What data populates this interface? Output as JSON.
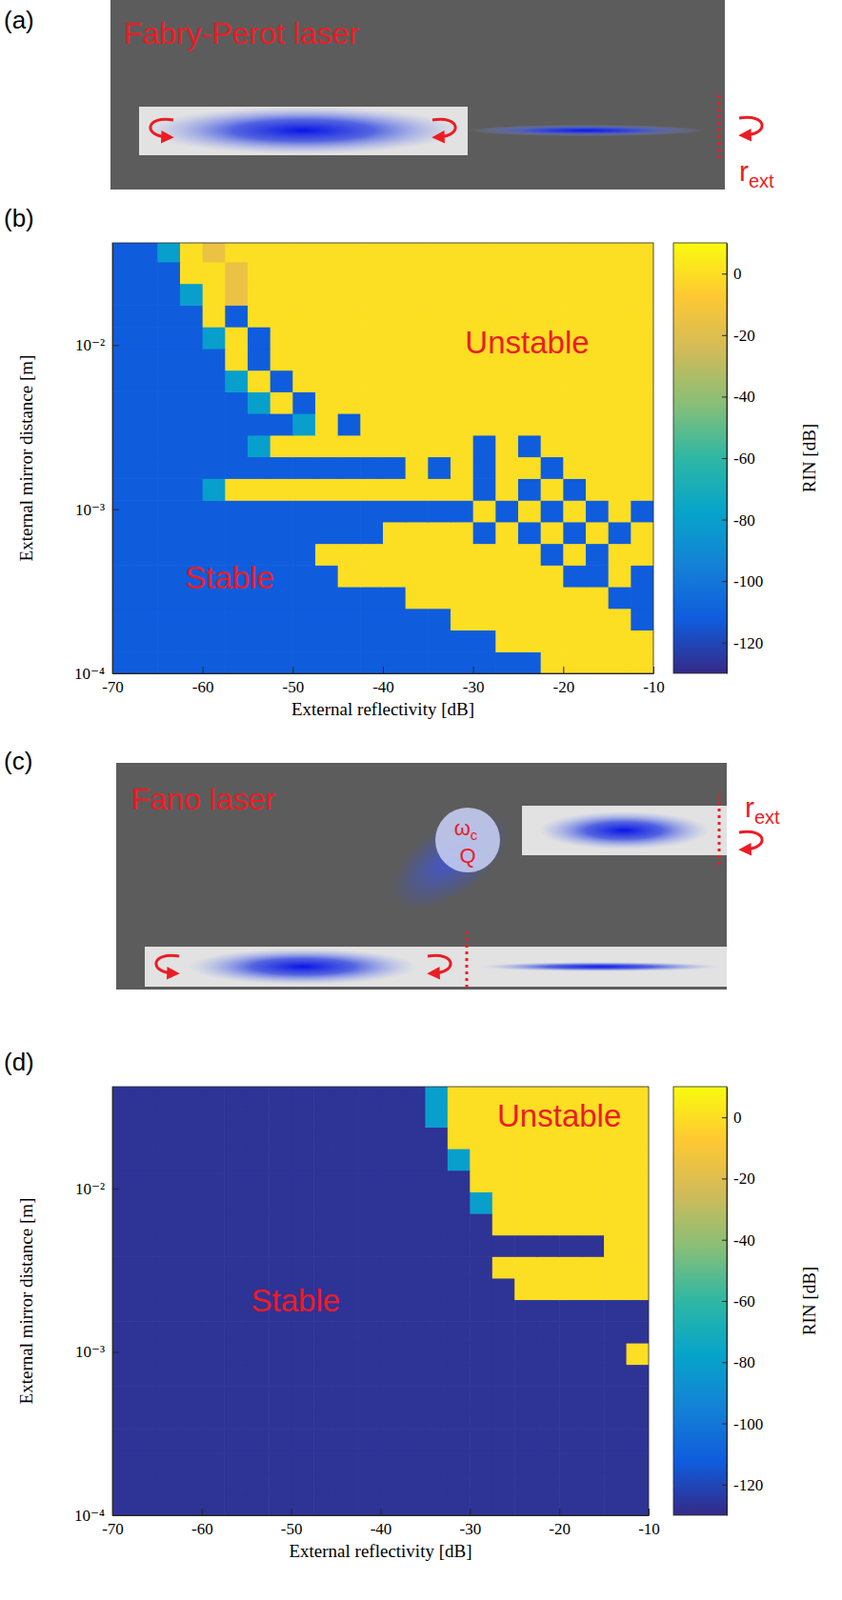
{
  "diagrams": [
    {
      "panel": "(a)",
      "title": "Fabry-Perot laser",
      "mirror_label": "r",
      "mirror_label_subscript": "ext"
    },
    {
      "panel": "(c)",
      "title": "Fano laser",
      "mirror_label": "r",
      "mirror_label_subscript": "ext",
      "cavity_frequency": "ω",
      "cavity_frequency_subscript": "c",
      "cavity_q": "Q"
    }
  ],
  "chart_data": [
    {
      "type": "heatmap",
      "panel": "(b)",
      "x_label": "External reflectivity [dB]",
      "y_label": "External mirror distance [m]",
      "log": "y",
      "xlim": [
        -70,
        -10
      ],
      "ylim": [
        0.0001,
        0.042
      ],
      "xticks": [
        -70,
        -60,
        -50,
        -40,
        -30,
        -20,
        -10
      ],
      "yticks": [
        {
          "value": 0.0001,
          "label": "10⁻⁴"
        },
        {
          "value": 0.001,
          "label": "10⁻³"
        },
        {
          "value": 0.01,
          "label": "10⁻²"
        }
      ],
      "x": [
        -68.75,
        -66.25,
        -63.75,
        -61.25,
        -58.75,
        -56.25,
        -53.75,
        -51.25,
        -48.75,
        -46.25,
        -43.75,
        -41.25,
        -38.75,
        -36.25,
        -33.75,
        -31.25,
        -28.75,
        -26.25,
        -23.75,
        -21.25,
        -18.75,
        -16.25,
        -13.75,
        -11.25
      ],
      "y": [
        0.000116,
        0.000158,
        0.000214,
        0.00029,
        0.000393,
        0.000532,
        0.000721,
        0.000977,
        0.00132,
        0.0018,
        0.00243,
        0.0033,
        0.00447,
        0.00605,
        0.0082,
        0.0111,
        0.0151,
        0.0204,
        0.0277,
        0.0375
      ],
      "cells": [
        [
          -112,
          -112,
          -112,
          -112,
          -112,
          -112,
          -112,
          -112,
          -112,
          -112,
          -112,
          -112,
          -112,
          -112,
          -112,
          -112,
          -112,
          -112,
          -112,
          0,
          0,
          0,
          0,
          0
        ],
        [
          -112,
          -112,
          -112,
          -112,
          -112,
          -112,
          -112,
          -112,
          -112,
          -112,
          -112,
          -112,
          -112,
          -112,
          -112,
          -112,
          -112,
          0,
          0,
          0,
          0,
          0,
          0,
          0
        ],
        [
          -112,
          -112,
          -112,
          -112,
          -112,
          -112,
          -112,
          -112,
          -112,
          -112,
          -112,
          -112,
          -112,
          -112,
          -112,
          0,
          0,
          0,
          0,
          0,
          0,
          0,
          0,
          -112
        ],
        [
          -112,
          -112,
          -112,
          -112,
          -112,
          -112,
          -112,
          -112,
          -112,
          -112,
          -112,
          -112,
          -112,
          0,
          0,
          0,
          0,
          0,
          0,
          0,
          0,
          0,
          -112,
          -112
        ],
        [
          -112,
          -112,
          -112,
          -112,
          -112,
          -112,
          -112,
          -112,
          -112,
          -112,
          0,
          0,
          0,
          0,
          0,
          0,
          0,
          0,
          0,
          0,
          -112,
          -112,
          0,
          -112
        ],
        [
          -112,
          -112,
          -112,
          -112,
          -112,
          -112,
          -112,
          -112,
          -112,
          0,
          0,
          0,
          0,
          0,
          0,
          0,
          0,
          0,
          0,
          -112,
          0,
          -112,
          0,
          0
        ],
        [
          -112,
          -112,
          -112,
          -112,
          -112,
          -112,
          -112,
          -112,
          -112,
          -112,
          -112,
          -112,
          0,
          0,
          0,
          0,
          -112,
          0,
          -112,
          0,
          -112,
          0,
          -112,
          0
        ],
        [
          -112,
          -112,
          -112,
          -112,
          -112,
          -112,
          -112,
          -112,
          -112,
          -112,
          -112,
          -112,
          -112,
          -112,
          -112,
          -112,
          0,
          -112,
          0,
          -112,
          0,
          -112,
          0,
          -112
        ],
        [
          -112,
          -112,
          -112,
          -112,
          -80,
          0,
          0,
          0,
          0,
          0,
          0,
          0,
          0,
          0,
          0,
          0,
          -112,
          0,
          -112,
          0,
          -112,
          0,
          0,
          0
        ],
        [
          -112,
          -112,
          -112,
          -112,
          -112,
          -112,
          -112,
          -112,
          -112,
          -112,
          -112,
          -112,
          -112,
          0,
          -112,
          0,
          -112,
          0,
          0,
          -112,
          0,
          0,
          0,
          0
        ],
        [
          -112,
          -112,
          -112,
          -112,
          -112,
          -112,
          -80,
          0,
          0,
          0,
          0,
          0,
          0,
          0,
          0,
          0,
          -112,
          0,
          -112,
          0,
          0,
          0,
          0,
          0
        ],
        [
          -112,
          -112,
          -112,
          -112,
          -112,
          -112,
          -112,
          -112,
          -80,
          0,
          -112,
          0,
          0,
          0,
          0,
          0,
          0,
          0,
          0,
          0,
          0,
          0,
          0,
          0
        ],
        [
          -112,
          -112,
          -112,
          -112,
          -112,
          -112,
          -80,
          0,
          -112,
          0,
          0,
          0,
          0,
          0,
          0,
          0,
          0,
          0,
          0,
          0,
          0,
          0,
          0,
          0
        ],
        [
          -112,
          -112,
          -112,
          -112,
          -112,
          -80,
          0,
          -112,
          0,
          0,
          0,
          0,
          0,
          0,
          0,
          0,
          0,
          0,
          0,
          0,
          0,
          0,
          0,
          0
        ],
        [
          -112,
          -112,
          -112,
          -112,
          -112,
          0,
          -112,
          0,
          0,
          0,
          0,
          0,
          0,
          0,
          0,
          0,
          0,
          0,
          0,
          0,
          0,
          0,
          0,
          0
        ],
        [
          -112,
          -112,
          -112,
          -112,
          -80,
          0,
          -112,
          0,
          0,
          0,
          0,
          0,
          0,
          0,
          0,
          0,
          0,
          0,
          0,
          0,
          0,
          0,
          0,
          0
        ],
        [
          -112,
          -112,
          -112,
          -112,
          0,
          -112,
          0,
          0,
          0,
          0,
          0,
          0,
          0,
          0,
          0,
          0,
          0,
          0,
          0,
          0,
          0,
          0,
          0,
          0
        ],
        [
          -112,
          -112,
          -112,
          -80,
          0,
          -15,
          0,
          0,
          0,
          0,
          0,
          0,
          0,
          0,
          0,
          0,
          0,
          0,
          0,
          0,
          0,
          0,
          0,
          0
        ],
        [
          -112,
          -112,
          -112,
          0,
          0,
          -15,
          0,
          0,
          0,
          0,
          0,
          0,
          0,
          0,
          0,
          0,
          0,
          0,
          0,
          0,
          0,
          0,
          0,
          0
        ],
        [
          -112,
          -112,
          -80,
          0,
          -15,
          0,
          0,
          0,
          0,
          0,
          0,
          0,
          0,
          0,
          0,
          0,
          0,
          0,
          0,
          0,
          0,
          0,
          0,
          0
        ]
      ],
      "colorbar": {
        "label": "RIN [dB]",
        "range": [
          -130,
          10
        ],
        "ticks": [
          0,
          -20,
          -40,
          -60,
          -80,
          -100,
          -120
        ]
      },
      "annotations": [
        {
          "text": "Unstable",
          "x": -24,
          "y": 0.01
        },
        {
          "text": "Stable",
          "x": -57,
          "y": 0.00037
        }
      ]
    },
    {
      "type": "heatmap",
      "panel": "(d)",
      "x_label": "External reflectivity [dB]",
      "y_label": "External mirror distance [m]",
      "log": "y",
      "xlim": [
        -70,
        -10
      ],
      "ylim": [
        0.0001,
        0.042
      ],
      "xticks": [
        -70,
        -60,
        -50,
        -40,
        -30,
        -20,
        -10
      ],
      "yticks": [
        {
          "value": 0.0001,
          "label": "10⁻⁴"
        },
        {
          "value": 0.001,
          "label": "10⁻³"
        },
        {
          "value": 0.01,
          "label": "10⁻²"
        }
      ],
      "x": [
        -68.75,
        -66.25,
        -63.75,
        -61.25,
        -58.75,
        -56.25,
        -53.75,
        -51.25,
        -48.75,
        -46.25,
        -43.75,
        -41.25,
        -38.75,
        -36.25,
        -33.75,
        -31.25,
        -28.75,
        -26.25,
        -23.75,
        -21.25,
        -18.75,
        -16.25,
        -13.75,
        -11.25
      ],
      "y": [
        0.000116,
        0.000158,
        0.000214,
        0.00029,
        0.000393,
        0.000532,
        0.000721,
        0.000977,
        0.00132,
        0.0018,
        0.00243,
        0.0033,
        0.00447,
        0.00605,
        0.0082,
        0.0111,
        0.0151,
        0.0204,
        0.0277,
        0.0375
      ],
      "cells": [
        [
          -127,
          -127,
          -127,
          -127,
          -127,
          -127,
          -127,
          -127,
          -127,
          -127,
          -127,
          -127,
          -127,
          -127,
          -127,
          -127,
          -127,
          -127,
          -127,
          -127,
          -127,
          -127,
          -127,
          -127
        ],
        [
          -127,
          -127,
          -127,
          -127,
          -127,
          -127,
          -127,
          -127,
          -127,
          -127,
          -127,
          -127,
          -127,
          -127,
          -127,
          -127,
          -127,
          -127,
          -127,
          -127,
          -127,
          -127,
          -127,
          -127
        ],
        [
          -127,
          -127,
          -127,
          -127,
          -127,
          -127,
          -127,
          -127,
          -127,
          -127,
          -127,
          -127,
          -127,
          -127,
          -127,
          -127,
          -127,
          -127,
          -127,
          -127,
          -127,
          -127,
          -127,
          -127
        ],
        [
          -127,
          -127,
          -127,
          -127,
          -127,
          -127,
          -127,
          -127,
          -127,
          -127,
          -127,
          -127,
          -127,
          -127,
          -127,
          -127,
          -127,
          -127,
          -127,
          -127,
          -127,
          -127,
          -127,
          -127
        ],
        [
          -127,
          -127,
          -127,
          -127,
          -127,
          -127,
          -127,
          -127,
          -127,
          -127,
          -127,
          -127,
          -127,
          -127,
          -127,
          -127,
          -127,
          -127,
          -127,
          -127,
          -127,
          -127,
          -127,
          -127
        ],
        [
          -127,
          -127,
          -127,
          -127,
          -127,
          -127,
          -127,
          -127,
          -127,
          -127,
          -127,
          -127,
          -127,
          -127,
          -127,
          -127,
          -127,
          -127,
          -127,
          -127,
          -127,
          -127,
          -127,
          -127
        ],
        [
          -127,
          -127,
          -127,
          -127,
          -127,
          -127,
          -127,
          -127,
          -127,
          -127,
          -127,
          -127,
          -127,
          -127,
          -127,
          -127,
          -127,
          -127,
          -127,
          -127,
          -127,
          -127,
          -127,
          -127
        ],
        [
          -127,
          -127,
          -127,
          -127,
          -127,
          -127,
          -127,
          -127,
          -127,
          -127,
          -127,
          -127,
          -127,
          -127,
          -127,
          -127,
          -127,
          -127,
          -127,
          -127,
          -127,
          -127,
          -127,
          0
        ],
        [
          -127,
          -127,
          -127,
          -127,
          -127,
          -127,
          -127,
          -127,
          -127,
          -127,
          -127,
          -127,
          -127,
          -127,
          -127,
          -127,
          -127,
          -127,
          -127,
          -127,
          -127,
          -127,
          -127,
          -127
        ],
        [
          -127,
          -127,
          -127,
          -127,
          -127,
          -127,
          -127,
          -127,
          -127,
          -127,
          -127,
          -127,
          -127,
          -127,
          -127,
          -127,
          -127,
          -127,
          -127,
          -127,
          -127,
          -127,
          -127,
          -127
        ],
        [
          -127,
          -127,
          -127,
          -127,
          -127,
          -127,
          -127,
          -127,
          -127,
          -127,
          -127,
          -127,
          -127,
          -127,
          -127,
          -127,
          -127,
          -127,
          0,
          0,
          0,
          0,
          0,
          0
        ],
        [
          -127,
          -127,
          -127,
          -127,
          -127,
          -127,
          -127,
          -127,
          -127,
          -127,
          -127,
          -127,
          -127,
          -127,
          -127,
          -127,
          -127,
          0,
          0,
          0,
          0,
          0,
          0,
          0
        ],
        [
          -127,
          -127,
          -127,
          -127,
          -127,
          -127,
          -127,
          -127,
          -127,
          -127,
          -127,
          -127,
          -127,
          -127,
          -127,
          -127,
          -127,
          -127,
          -127,
          -127,
          -127,
          -127,
          0,
          0
        ],
        [
          -127,
          -127,
          -127,
          -127,
          -127,
          -127,
          -127,
          -127,
          -127,
          -127,
          -127,
          -127,
          -127,
          -127,
          -127,
          -127,
          -127,
          0,
          0,
          0,
          0,
          0,
          0,
          0
        ],
        [
          -127,
          -127,
          -127,
          -127,
          -127,
          -127,
          -127,
          -127,
          -127,
          -127,
          -127,
          -127,
          -127,
          -127,
          -127,
          -127,
          -80,
          0,
          0,
          0,
          0,
          0,
          0,
          0
        ],
        [
          -127,
          -127,
          -127,
          -127,
          -127,
          -127,
          -127,
          -127,
          -127,
          -127,
          -127,
          -127,
          -127,
          -127,
          -127,
          -127,
          0,
          0,
          0,
          0,
          0,
          0,
          0,
          0
        ],
        [
          -127,
          -127,
          -127,
          -127,
          -127,
          -127,
          -127,
          -127,
          -127,
          -127,
          -127,
          -127,
          -127,
          -127,
          -127,
          -80,
          0,
          0,
          0,
          0,
          0,
          0,
          0,
          0
        ],
        [
          -127,
          -127,
          -127,
          -127,
          -127,
          -127,
          -127,
          -127,
          -127,
          -127,
          -127,
          -127,
          -127,
          -127,
          -127,
          0,
          0,
          0,
          0,
          0,
          0,
          0,
          0,
          0
        ],
        [
          -127,
          -127,
          -127,
          -127,
          -127,
          -127,
          -127,
          -127,
          -127,
          -127,
          -127,
          -127,
          -127,
          -127,
          -80,
          0,
          0,
          0,
          0,
          0,
          0,
          0,
          0,
          0
        ],
        [
          -127,
          -127,
          -127,
          -127,
          -127,
          -127,
          -127,
          -127,
          -127,
          -127,
          -127,
          -127,
          -127,
          -127,
          -80,
          0,
          0,
          0,
          0,
          0,
          0,
          0,
          0,
          0
        ]
      ],
      "colorbar": {
        "label": "RIN [dB]",
        "range": [
          -130,
          10
        ],
        "ticks": [
          0,
          -20,
          -40,
          -60,
          -80,
          -100,
          -120
        ]
      },
      "annotations": [
        {
          "text": "Unstable",
          "x": -20,
          "y": 0.027
        },
        {
          "text": "Stable",
          "x": -49.5,
          "y": 0.002
        }
      ]
    }
  ]
}
